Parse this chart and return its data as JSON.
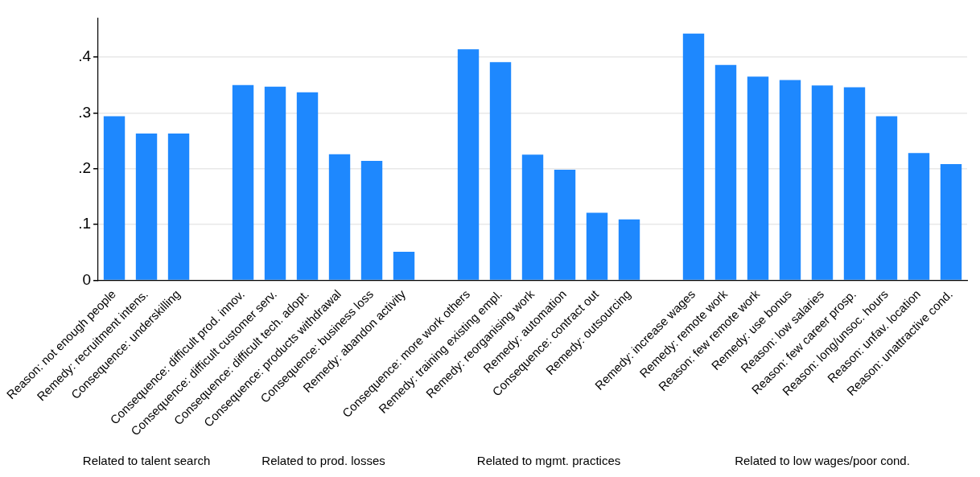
{
  "chart_data": {
    "type": "bar",
    "categories": [
      "Reason: not enough people",
      "Remedy: recruitment intens.",
      "Consequence: underskilling",
      null,
      "Consequence: difficult prod. innov.",
      "Consequence: difficult customer serv.",
      "Consequence: difficult tech. adopt.",
      "Consequence: products withdrawal",
      "Consequence: business loss",
      "Remedy: abandon activity",
      null,
      "Consequence: more work others",
      "Remedy: training existing empl.",
      "Remedy: reorganising work",
      "Remedy: automation",
      "Consequence: contract out",
      "Remedy: outsourcing",
      null,
      "Remedy: increase wages",
      "Remedy: remote work",
      "Reason: few remote work",
      "Remedy: use bonus",
      "Reason: low salaries",
      "Reason: few career prosp.",
      "Reason: long/unsoc. hours",
      "Reason: unfav. location",
      "Reason: unattractive cond."
    ],
    "values": [
      0.294,
      0.263,
      0.263,
      null,
      0.35,
      0.347,
      0.337,
      0.226,
      0.214,
      0.051,
      null,
      0.414,
      0.391,
      0.225,
      0.198,
      0.121,
      0.109,
      null,
      0.442,
      0.386,
      0.365,
      0.359,
      0.349,
      0.346,
      0.294,
      0.228,
      0.208
    ],
    "color": "#1e88fe",
    "ylim": [
      0,
      0.47
    ],
    "yticks": [
      0,
      {
        "value": 0.1,
        "label": ".1"
      },
      {
        "value": 0.2,
        "label": ".2"
      },
      {
        "value": 0.3,
        "label": ".3"
      },
      {
        "value": 0.4,
        "label": ".4"
      }
    ],
    "grid": "y",
    "legend": false,
    "annotations": [
      "Related to talent search",
      "Related to prod. losses",
      "Related to mgmt. practices",
      "Related to low wages/poor cond."
    ]
  }
}
